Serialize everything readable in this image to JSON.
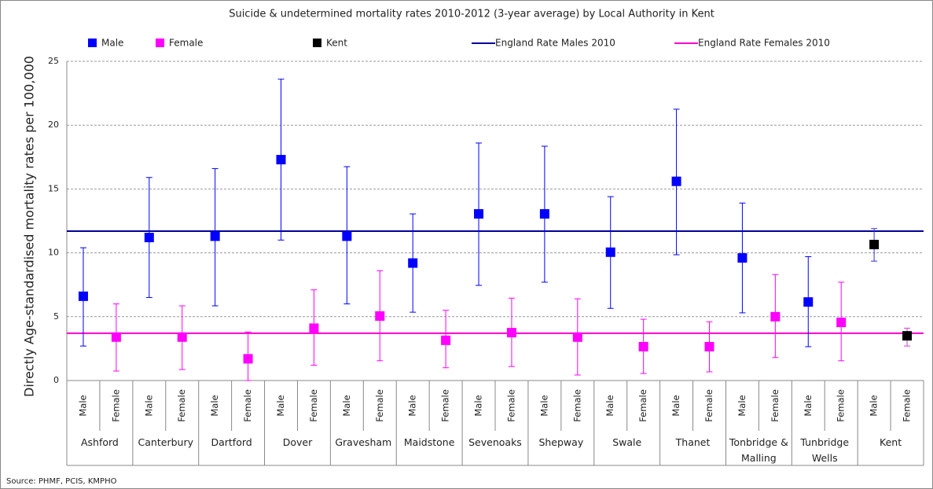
{
  "chart_data": {
    "type": "errorbar",
    "title": "Suicide & undetermined mortality rates 2010-2012 (3-year average)  by Local Authority in Kent",
    "y_label": "Directly Age-standardised mortality rates per 100,000",
    "source": "Source: PHMF, PCIS, KMPHO",
    "groups": [
      "Ashford",
      "Canterbury",
      "Dartford",
      "Dover",
      "Gravesham",
      "Maidstone",
      "Sevenoaks",
      "Shepway",
      "Swale",
      "Thanet",
      "Tonbridge & Malling",
      "Tunbridge Wells",
      "Kent"
    ],
    "categories": [
      "Male",
      "Female",
      "Male",
      "Female",
      "Male",
      "Female",
      "Male",
      "Female",
      "Male",
      "Female",
      "Male",
      "Female",
      "Male",
      "Female",
      "Male",
      "Female",
      "Male",
      "Female",
      "Male",
      "Female",
      "Male",
      "Female",
      "Male",
      "Female",
      "Male",
      "Female"
    ],
    "series": [
      {
        "name": "Male",
        "color": "#0000ff",
        "values": [
          6.6,
          null,
          11.2,
          null,
          11.3,
          null,
          17.3,
          null,
          11.3,
          null,
          9.2,
          null,
          13.05,
          null,
          13.05,
          null,
          10.05,
          null,
          15.6,
          null,
          9.6,
          null,
          6.15,
          null,
          null,
          null
        ],
        "lower": [
          2.7,
          null,
          6.5,
          null,
          5.85,
          null,
          11.0,
          null,
          6.0,
          null,
          5.35,
          null,
          7.45,
          null,
          7.7,
          null,
          5.65,
          null,
          9.85,
          null,
          5.3,
          null,
          2.65,
          null,
          null,
          null
        ],
        "upper": [
          10.4,
          null,
          15.9,
          null,
          16.6,
          null,
          23.6,
          null,
          16.75,
          null,
          13.05,
          null,
          18.6,
          null,
          18.35,
          null,
          14.4,
          null,
          21.25,
          null,
          13.9,
          null,
          9.7,
          null,
          null,
          null
        ]
      },
      {
        "name": "Female",
        "color": "#ff00ff",
        "values": [
          null,
          3.4,
          null,
          3.4,
          null,
          1.7,
          null,
          4.1,
          null,
          5.05,
          null,
          3.15,
          null,
          3.75,
          null,
          3.4,
          null,
          2.65,
          null,
          2.65,
          null,
          5.0,
          null,
          4.55,
          null,
          null
        ],
        "lower": [
          null,
          0.74,
          null,
          0.86,
          null,
          0,
          null,
          1.2,
          null,
          1.55,
          null,
          1.0,
          null,
          1.1,
          null,
          0.43,
          null,
          0.55,
          null,
          0.68,
          null,
          1.8,
          null,
          1.55,
          null,
          null
        ],
        "upper": [
          null,
          6.0,
          null,
          5.85,
          null,
          3.8,
          null,
          7.1,
          null,
          8.6,
          null,
          5.5,
          null,
          6.45,
          null,
          6.4,
          null,
          4.8,
          null,
          4.6,
          null,
          8.3,
          null,
          7.7,
          null,
          null
        ]
      },
      {
        "name": "Kent",
        "color": "#000000",
        "values": [
          null,
          null,
          null,
          null,
          null,
          null,
          null,
          null,
          null,
          null,
          null,
          null,
          null,
          null,
          null,
          null,
          null,
          null,
          null,
          null,
          null,
          null,
          null,
          null,
          10.65,
          3.5
        ],
        "lower": [
          null,
          null,
          null,
          null,
          null,
          null,
          null,
          null,
          null,
          null,
          null,
          null,
          null,
          null,
          null,
          null,
          null,
          null,
          null,
          null,
          null,
          null,
          null,
          null,
          9.35,
          2.7
        ],
        "upper": [
          null,
          null,
          null,
          null,
          null,
          null,
          null,
          null,
          null,
          null,
          null,
          null,
          null,
          null,
          null,
          null,
          null,
          null,
          null,
          null,
          null,
          null,
          null,
          null,
          11.9,
          4.1
        ]
      }
    ],
    "reference_lines": [
      {
        "name": "England Rate Males 2010",
        "color": "#000099",
        "value": 11.7
      },
      {
        "name": "England Rate Females 2010",
        "color": "#ff00cc",
        "value": 3.7
      }
    ],
    "ylim": [
      0,
      25
    ],
    "yticks": [
      0,
      5,
      10,
      15,
      20,
      25
    ],
    "grid": true
  }
}
